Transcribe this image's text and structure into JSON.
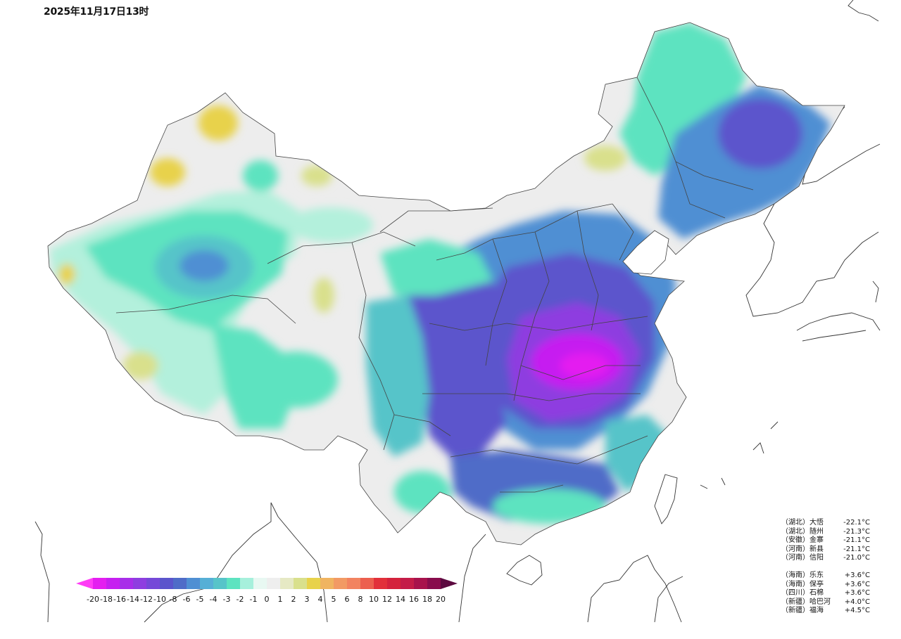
{
  "timestamp": "2025年11月17日13时",
  "colors": {
    "magenta": "#d21fee",
    "purple": "#8b3ae0",
    "violet": "#6653cf",
    "indigo": "#4f6cc8",
    "blue": "#4f8fd3",
    "teal": "#56c4c9",
    "aqua": "#5de3c0",
    "mint": "#b3f0dc",
    "pale": "#eeeeee",
    "yellowgreen": "#d9e08c",
    "yellow": "#e8d24b",
    "orange": "#f0a060",
    "border": "#555555"
  },
  "legend": {
    "labels": [
      "-20",
      "-18",
      "-16",
      "-14",
      "-12",
      "-10",
      "-8",
      "-6",
      "-5",
      "-4",
      "-3",
      "-2",
      "-1",
      "0",
      "1",
      "2",
      "3",
      "4",
      "5",
      "6",
      "8",
      "10",
      "12",
      "14",
      "16",
      "18",
      "20"
    ],
    "colors": [
      "#e41ef0",
      "#c61ff0",
      "#a82ee9",
      "#8e3ee0",
      "#7548d8",
      "#5b55cc",
      "#4f6cc8",
      "#4f8fd3",
      "#56afd6",
      "#56c4c9",
      "#5de3c0",
      "#a6f0dc",
      "#e8f8f2",
      "#eeeeee",
      "#e6e9c4",
      "#d9e08c",
      "#e8d24b",
      "#f0b460",
      "#f29a64",
      "#f28360",
      "#ec5f4e",
      "#e2303a",
      "#d4223c",
      "#c41c48",
      "#a8124c",
      "#880c4c"
    ]
  },
  "cold_extremes": [
    {
      "province": "（湖北）",
      "name": "大悟",
      "value": "-22.1°C"
    },
    {
      "province": "（湖北）",
      "name": "随州",
      "value": "-21.3°C"
    },
    {
      "province": "（安徽）",
      "name": "金寨",
      "value": "-21.1°C"
    },
    {
      "province": "（河南）",
      "name": "新县",
      "value": "-21.1°C"
    },
    {
      "province": "（河南）",
      "name": "信阳",
      "value": "-21.0°C"
    }
  ],
  "warm_extremes": [
    {
      "province": "（海南）",
      "name": "乐东",
      "value": "+3.6°C"
    },
    {
      "province": "（海南）",
      "name": "保亭",
      "value": "+3.6°C"
    },
    {
      "province": "（四川）",
      "name": "石棉",
      "value": "+3.6°C"
    },
    {
      "province": "（新疆）",
      "name": "哈巴河",
      "value": "+4.0°C"
    },
    {
      "province": "（新疆）",
      "name": "福海",
      "value": "+4.5°C"
    }
  ]
}
